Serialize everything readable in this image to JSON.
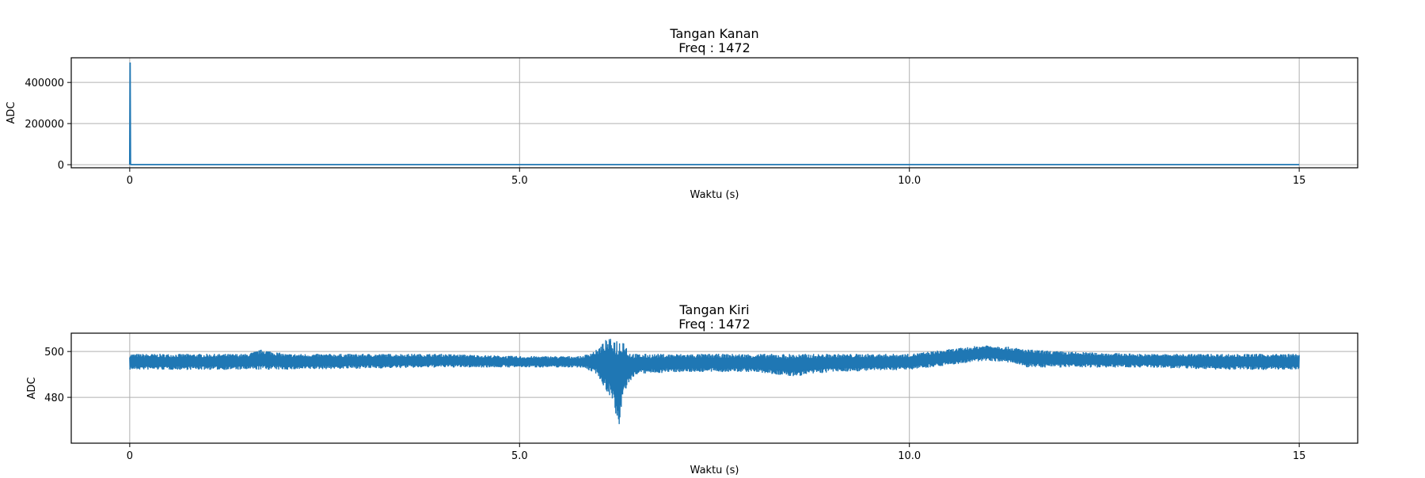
{
  "chart_data": [
    {
      "type": "line",
      "title": "Tangan Kanan\nFreq : 1472",
      "xlabel": "Waktu (s)",
      "ylabel": "ADC",
      "xlim": [
        -0.75,
        15.75
      ],
      "ylim": [
        -15000,
        520000
      ],
      "xticks": [
        0,
        5,
        10,
        15
      ],
      "xtick_labels": [
        "0",
        "5.0",
        "10.0",
        "15"
      ],
      "yticks": [
        0,
        200000,
        400000
      ],
      "ytick_labels": [
        "0",
        "200000",
        "400000"
      ],
      "grid": true,
      "color": "#1f77b4",
      "series": [
        {
          "x": [
            0,
            0.005,
            0.01,
            0.02,
            15
          ],
          "y": [
            496,
            497000,
            2000,
            496,
            496
          ]
        }
      ]
    },
    {
      "type": "line",
      "title": "Tangan Kiri\nFreq :  1472",
      "xlabel": "Waktu (s)",
      "ylabel": "ADC",
      "xlim": [
        -0.75,
        15.75
      ],
      "ylim": [
        460,
        508
      ],
      "xticks": [
        0,
        5,
        10,
        15
      ],
      "xtick_labels": [
        "0",
        "5.0",
        "10.0",
        "15"
      ],
      "yticks": [
        480,
        500
      ],
      "ytick_labels": [
        "480",
        "500"
      ],
      "grid": true,
      "color": "#1f77b4",
      "envelope": {
        "x": [
          0,
          1.5,
          1.7,
          2.0,
          4.0,
          5.0,
          5.8,
          6.0,
          6.1,
          6.2,
          6.27,
          6.33,
          6.4,
          6.5,
          7.0,
          8.0,
          8.5,
          9.0,
          10.0,
          10.5,
          11.0,
          11.3,
          11.5,
          12.0,
          13.0,
          14.0,
          15.0
        ],
        "upper": [
          499,
          499,
          501,
          499,
          499,
          498,
          498,
          501,
          505,
          506,
          506,
          506,
          500,
          499,
          499,
          499,
          499,
          499,
          499,
          501,
          503,
          502,
          501,
          500,
          499,
          499,
          499
        ],
        "lower": [
          492,
          492,
          492,
          492,
          493,
          493,
          493,
          490,
          483,
          479,
          463,
          481,
          486,
          490,
          491,
          491,
          489,
          491,
          492,
          494,
          496,
          495,
          493,
          493,
          493,
          492,
          492
        ]
      }
    }
  ]
}
